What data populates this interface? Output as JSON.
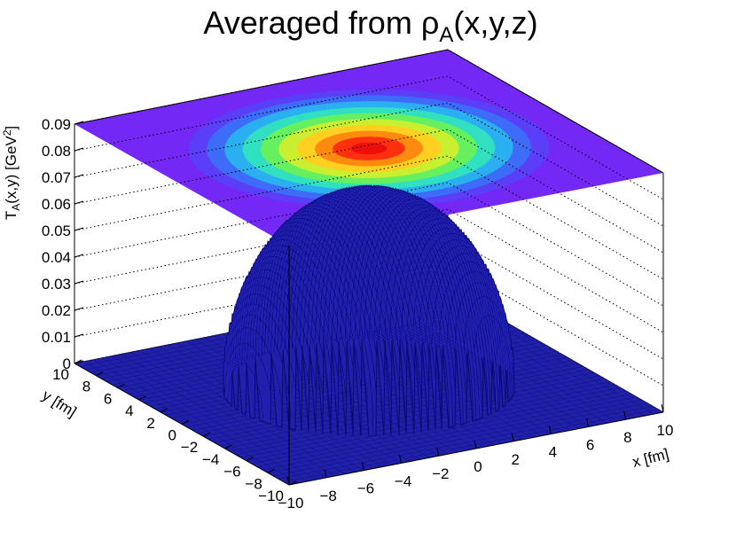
{
  "chart_data": {
    "type": "surface",
    "title": "Averaged from ρA(x,y,z)",
    "title_parts": {
      "lead": "Averaged from ",
      "rho": "ρ",
      "sub": "A",
      "tail": "(x,y,z)"
    },
    "xlabel": "x [fm]",
    "ylabel": "y [fm]",
    "zlabel": "T_A(x,y) [GeV^2]",
    "zlabel_parts": {
      "lead": "T",
      "sub": "A",
      "mid": "(x,y) [GeV",
      "sup": "2",
      "tail": "]"
    },
    "x_ticks": [
      "−10",
      "−8",
      "−6",
      "−4",
      "−2",
      "0",
      "2",
      "4",
      "6",
      "8",
      "10"
    ],
    "y_ticks": [
      "−10",
      "−8",
      "−6",
      "−4",
      "−2",
      "0",
      "2",
      "4",
      "6",
      "8",
      "10"
    ],
    "z_ticks": [
      "0",
      "0.01",
      "0.02",
      "0.03",
      "0.04",
      "0.05",
      "0.06",
      "0.07",
      "0.08",
      "0.09"
    ],
    "xlim": [
      -10,
      10
    ],
    "ylim": [
      -10,
      10
    ],
    "zlim": [
      0,
      0.09
    ],
    "peak": {
      "x": 0,
      "y": 0,
      "z": 0.074
    },
    "radius_fm": 6.8,
    "colz_projection": true,
    "grid": "z dotted",
    "colors": {
      "surface": "#1f1faa",
      "surface_line": "#000070",
      "floor": "#2020a8",
      "top_plane": "#7328f5",
      "contour_stops": [
        "#7328f5",
        "#5a3ef8",
        "#3c6cf8",
        "#2ab0f0",
        "#30e0c0",
        "#66f060",
        "#c8f030",
        "#ffd020",
        "#ff8a10",
        "#ff3010",
        "#ee1008"
      ]
    }
  }
}
